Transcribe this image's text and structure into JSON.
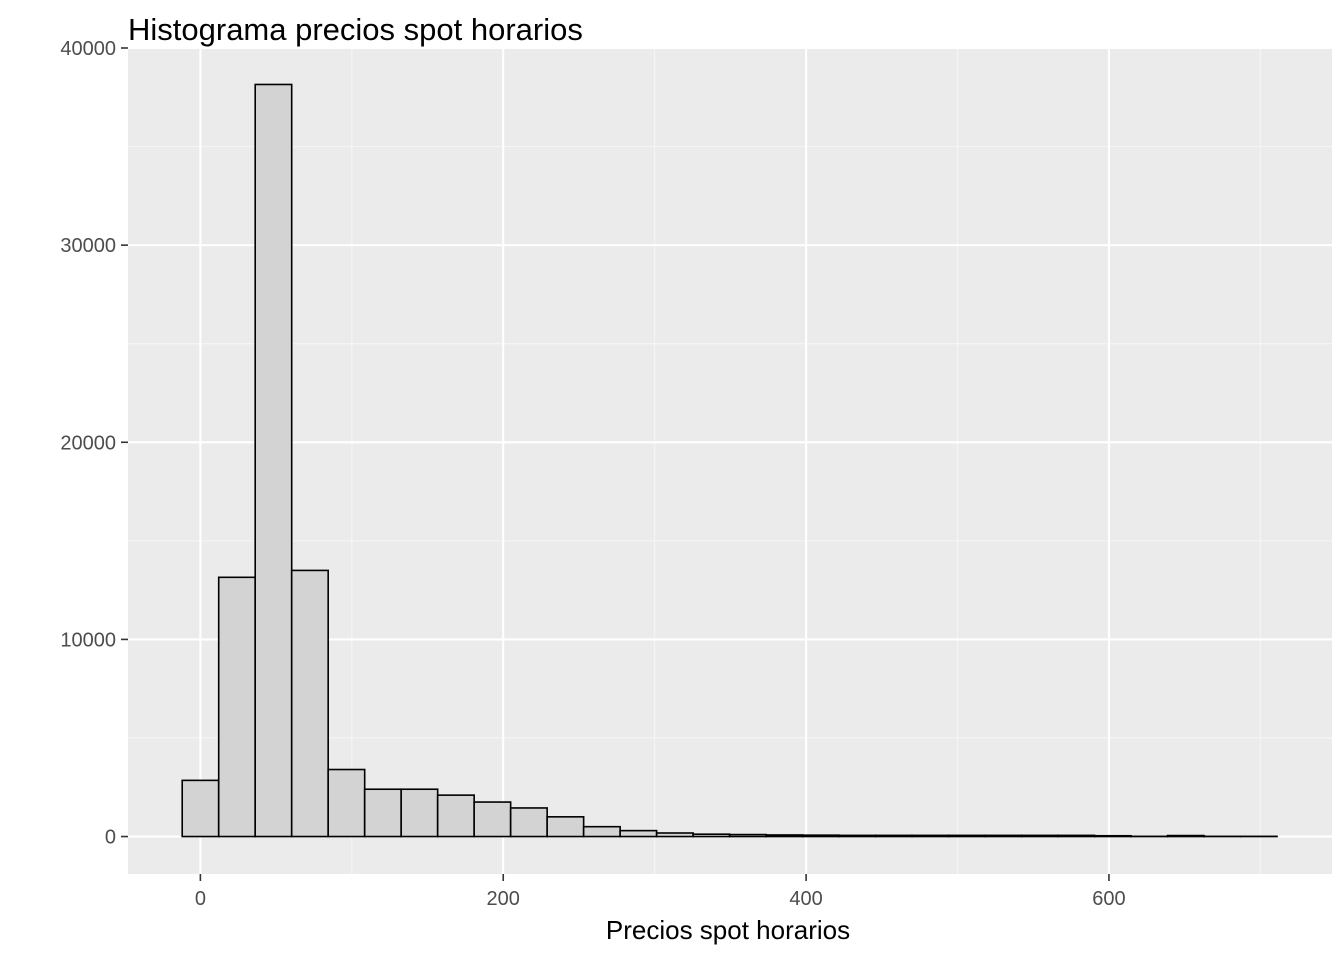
{
  "chart_data": {
    "type": "bar",
    "title": "Histograma precios spot horarios",
    "xlabel": "Precios spot horarios",
    "ylabel": "",
    "xlim": [
      -47.8,
      747.3
    ],
    "ylim": [
      -1900,
      40000
    ],
    "x_ticks": [
      0,
      200,
      400,
      600
    ],
    "x_tick_labels": [
      "0",
      "200",
      "400",
      "600"
    ],
    "y_ticks": [
      0,
      10000,
      20000,
      30000,
      40000
    ],
    "y_tick_labels": [
      "0",
      "10000",
      "20000",
      "30000",
      "40000"
    ],
    "grid": true,
    "bin_width": 24.1,
    "bins": [
      {
        "x0": -12.0,
        "x1": 12.1,
        "count": 2850
      },
      {
        "x0": 12.1,
        "x1": 36.2,
        "count": 13150
      },
      {
        "x0": 36.2,
        "x1": 60.3,
        "count": 38150
      },
      {
        "x0": 60.3,
        "x1": 84.4,
        "count": 13500
      },
      {
        "x0": 84.4,
        "x1": 108.5,
        "count": 3400
      },
      {
        "x0": 108.5,
        "x1": 132.6,
        "count": 2400
      },
      {
        "x0": 132.6,
        "x1": 156.7,
        "count": 2400
      },
      {
        "x0": 156.7,
        "x1": 180.8,
        "count": 2100
      },
      {
        "x0": 180.8,
        "x1": 204.9,
        "count": 1750
      },
      {
        "x0": 204.9,
        "x1": 229.0,
        "count": 1450
      },
      {
        "x0": 229.0,
        "x1": 253.1,
        "count": 1000
      },
      {
        "x0": 253.1,
        "x1": 277.2,
        "count": 500
      },
      {
        "x0": 277.2,
        "x1": 301.3,
        "count": 300
      },
      {
        "x0": 301.3,
        "x1": 325.4,
        "count": 180
      },
      {
        "x0": 325.4,
        "x1": 349.5,
        "count": 120
      },
      {
        "x0": 349.5,
        "x1": 373.6,
        "count": 100
      },
      {
        "x0": 373.6,
        "x1": 397.7,
        "count": 80
      },
      {
        "x0": 397.7,
        "x1": 421.8,
        "count": 70
      },
      {
        "x0": 421.8,
        "x1": 445.9,
        "count": 60
      },
      {
        "x0": 445.9,
        "x1": 470.0,
        "count": 60
      },
      {
        "x0": 470.0,
        "x1": 494.1,
        "count": 60
      },
      {
        "x0": 494.1,
        "x1": 518.2,
        "count": 60
      },
      {
        "x0": 518.2,
        "x1": 542.3,
        "count": 60
      },
      {
        "x0": 542.3,
        "x1": 566.4,
        "count": 60
      },
      {
        "x0": 566.4,
        "x1": 590.5,
        "count": 60
      },
      {
        "x0": 590.5,
        "x1": 614.6,
        "count": 40
      },
      {
        "x0": 614.6,
        "x1": 638.7,
        "count": 10
      },
      {
        "x0": 638.7,
        "x1": 662.8,
        "count": 50
      },
      {
        "x0": 662.8,
        "x1": 686.9,
        "count": 10
      },
      {
        "x0": 686.9,
        "x1": 711.0,
        "count": 10
      }
    ],
    "colors": {
      "panel_background": "#ebebeb",
      "grid_major": "#ffffff",
      "grid_minor": "#f5f5f5",
      "bar_fill": "#d3d3d3",
      "bar_outline": "#000000",
      "tick_color": "#333333",
      "tick_label_color": "#4d4d4d"
    }
  }
}
